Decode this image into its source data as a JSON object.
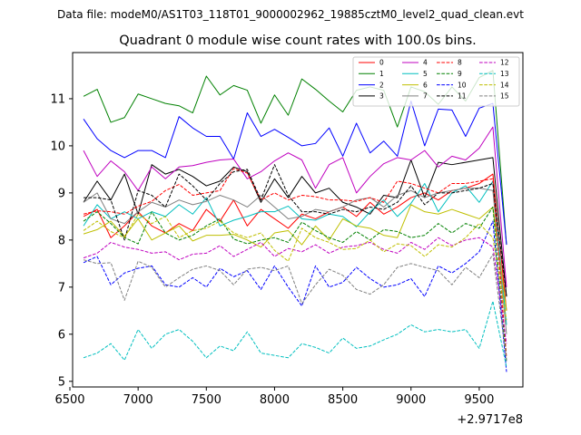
{
  "suptitle": "Data file: modeM0/AS1T03_118T01_9000002962_19885cztM0_level2_quad_clean.evt",
  "chart_data": {
    "type": "line",
    "title": "Quadrant 0 module wise count rates with 100.0s bins.",
    "xlabel": "",
    "ylabel": "",
    "x_offset_label": "+2.9717e8",
    "xlim": [
      6520,
      9820
    ],
    "ylim": [
      4.88,
      11.98
    ],
    "x_ticks": [
      6500,
      7000,
      7500,
      8000,
      8500,
      9000,
      9500
    ],
    "x_tick_labels": [
      "6500",
      "7000",
      "7500",
      "8000",
      "8500",
      "9000",
      "9500"
    ],
    "y_ticks": [
      5,
      6,
      7,
      8,
      9,
      10,
      11
    ],
    "y_tick_labels": [
      "5",
      "6",
      "7",
      "8",
      "9",
      "10",
      "11"
    ],
    "grid": false,
    "legend_position": "top-right",
    "legend_columns": 4,
    "x": [
      6600,
      6700,
      6800,
      6900,
      7000,
      7100,
      7200,
      7300,
      7400,
      7500,
      7600,
      7700,
      7800,
      7900,
      8000,
      8100,
      8200,
      8300,
      8400,
      8500,
      8600,
      8700,
      8800,
      8900,
      9000,
      9100,
      9200,
      9300,
      9400,
      9500,
      9600,
      9700
    ],
    "series": [
      {
        "name": "0",
        "color": "#ff0000",
        "dash": "solid",
        "values": [
          8.5,
          8.65,
          8.05,
          8.3,
          8.6,
          8.3,
          8.15,
          8.35,
          8.2,
          8.65,
          8.4,
          8.85,
          8.3,
          8.65,
          8.45,
          8.25,
          8.55,
          8.45,
          8.6,
          8.7,
          8.5,
          8.8,
          8.55,
          8.7,
          8.9,
          9.0,
          8.85,
          9.05,
          9.1,
          9.2,
          9.4,
          6.5
        ]
      },
      {
        "name": "1",
        "color": "#008000",
        "dash": "solid",
        "values": [
          11.05,
          11.2,
          10.5,
          10.6,
          11.1,
          11.0,
          10.9,
          10.85,
          10.7,
          11.48,
          11.08,
          11.28,
          11.18,
          10.48,
          11.08,
          10.65,
          11.42,
          11.2,
          10.95,
          10.72,
          11.18,
          11.25,
          11.18,
          10.4,
          11.25,
          11.15,
          10.88,
          11.25,
          10.95,
          11.45,
          11.6,
          7.9
        ]
      },
      {
        "name": "2",
        "color": "#0000ff",
        "dash": "solid",
        "values": [
          10.57,
          10.15,
          9.9,
          9.75,
          9.9,
          9.9,
          9.75,
          10.62,
          10.38,
          10.2,
          10.2,
          9.72,
          10.7,
          10.2,
          10.35,
          10.18,
          10.0,
          10.05,
          10.38,
          9.78,
          10.48,
          9.85,
          10.1,
          9.78,
          10.95,
          10.0,
          10.78,
          10.76,
          10.2,
          10.8,
          10.9,
          7.9
        ]
      },
      {
        "name": "3",
        "color": "#000000",
        "dash": "solid",
        "values": [
          8.8,
          9.25,
          8.85,
          9.4,
          8.55,
          9.6,
          9.4,
          9.5,
          9.35,
          9.15,
          9.25,
          9.55,
          9.45,
          8.8,
          9.3,
          8.9,
          9.35,
          9.0,
          9.1,
          8.8,
          8.7,
          8.55,
          8.95,
          8.9,
          9.7,
          8.9,
          9.65,
          9.6,
          9.65,
          9.7,
          9.75,
          6.8
        ]
      },
      {
        "name": "4",
        "color": "#bf00bf",
        "dash": "solid",
        "values": [
          9.9,
          9.35,
          9.68,
          9.45,
          9.05,
          9.55,
          9.3,
          9.55,
          9.58,
          9.65,
          9.7,
          9.72,
          9.3,
          9.45,
          9.68,
          9.85,
          9.7,
          9.1,
          9.6,
          9.75,
          9.0,
          9.35,
          9.62,
          9.75,
          9.7,
          9.9,
          9.55,
          9.78,
          9.7,
          9.95,
          10.4,
          7.0
        ]
      },
      {
        "name": "5",
        "color": "#00bfbf",
        "dash": "solid",
        "values": [
          8.3,
          8.75,
          8.45,
          8.6,
          8.45,
          8.6,
          8.5,
          8.75,
          8.55,
          8.9,
          8.3,
          8.42,
          8.5,
          8.6,
          8.6,
          8.72,
          8.45,
          8.42,
          8.55,
          8.5,
          8.28,
          8.6,
          8.85,
          8.5,
          8.78,
          9.2,
          8.6,
          9.0,
          9.15,
          8.8,
          9.25,
          6.2
        ]
      },
      {
        "name": "6",
        "color": "#bfbf00",
        "dash": "solid",
        "values": [
          8.13,
          8.22,
          8.4,
          8.08,
          8.45,
          8.0,
          8.15,
          8.3,
          7.98,
          8.1,
          8.1,
          8.12,
          8.0,
          7.85,
          8.15,
          8.2,
          7.9,
          8.3,
          8.0,
          8.45,
          8.3,
          8.25,
          8.1,
          8.05,
          8.75,
          8.6,
          8.55,
          8.65,
          8.55,
          8.45,
          8.7,
          6.5
        ]
      },
      {
        "name": "7",
        "color": "#808080",
        "dash": "solid",
        "values": [
          8.8,
          9.0,
          8.45,
          8.35,
          8.6,
          8.8,
          8.7,
          8.85,
          8.75,
          8.82,
          8.95,
          8.85,
          8.7,
          8.95,
          8.7,
          8.45,
          8.5,
          8.65,
          8.6,
          8.7,
          8.85,
          8.9,
          8.7,
          8.95,
          9.05,
          8.9,
          9.0,
          9.05,
          9.1,
          9.1,
          9.05,
          6.0
        ]
      },
      {
        "name": "8",
        "color": "#ff0000",
        "dash": "dashed",
        "values": [
          8.55,
          8.62,
          8.6,
          8.55,
          8.72,
          8.82,
          9.05,
          9.18,
          8.95,
          9.0,
          9.05,
          9.52,
          9.42,
          8.85,
          9.0,
          8.85,
          8.95,
          8.92,
          8.85,
          8.85,
          8.82,
          8.9,
          8.8,
          9.25,
          9.2,
          9.1,
          9.0,
          9.2,
          9.2,
          9.25,
          9.3,
          5.5
        ]
      },
      {
        "name": "9",
        "color": "#008000",
        "dash": "dashed",
        "values": [
          8.4,
          8.6,
          8.35,
          8.05,
          7.92,
          8.6,
          8.15,
          8.0,
          8.1,
          8.3,
          8.45,
          8.02,
          7.92,
          8.0,
          8.05,
          7.95,
          8.38,
          8.2,
          8.05,
          7.95,
          8.18,
          8.0,
          8.22,
          8.18,
          8.05,
          8.1,
          8.35,
          8.15,
          8.35,
          8.25,
          8.7,
          5.4
        ]
      },
      {
        "name": "10",
        "color": "#0000ff",
        "dash": "dashed",
        "values": [
          7.52,
          7.65,
          7.05,
          7.3,
          7.4,
          7.45,
          7.05,
          7.0,
          7.2,
          7.0,
          7.4,
          7.22,
          7.35,
          6.95,
          7.45,
          7.0,
          6.6,
          7.45,
          7.0,
          7.1,
          7.42,
          7.18,
          7.0,
          7.05,
          7.18,
          6.8,
          7.45,
          7.3,
          7.5,
          7.75,
          8.4,
          5.2
        ]
      },
      {
        "name": "11",
        "color": "#000000",
        "dash": "dashed",
        "values": [
          8.9,
          8.9,
          8.85,
          8.0,
          9.05,
          8.95,
          8.7,
          9.4,
          9.15,
          8.85,
          9.2,
          9.45,
          9.5,
          8.85,
          9.6,
          8.95,
          8.6,
          8.6,
          8.55,
          8.65,
          8.6,
          8.7,
          8.65,
          8.8,
          9.15,
          8.75,
          9.0,
          9.0,
          9.05,
          9.1,
          9.2,
          6.8
        ]
      },
      {
        "name": "12",
        "color": "#bf00bf",
        "dash": "dashed",
        "values": [
          7.62,
          7.72,
          7.95,
          7.85,
          7.8,
          7.72,
          7.75,
          7.58,
          7.7,
          7.72,
          7.88,
          7.65,
          7.8,
          7.95,
          7.65,
          7.82,
          7.75,
          7.9,
          7.72,
          7.85,
          7.88,
          7.95,
          7.8,
          7.72,
          7.95,
          7.8,
          8.05,
          7.88,
          8.0,
          8.05,
          7.85,
          5.8
        ]
      },
      {
        "name": "13",
        "color": "#00bfbf",
        "dash": "dashed",
        "values": [
          5.5,
          5.6,
          5.8,
          5.45,
          6.1,
          5.7,
          6.0,
          6.1,
          5.85,
          5.5,
          5.75,
          5.65,
          6.05,
          5.6,
          5.55,
          5.5,
          5.8,
          5.72,
          5.6,
          5.92,
          5.7,
          5.75,
          5.88,
          6.0,
          6.2,
          6.05,
          6.1,
          6.05,
          6.1,
          5.7,
          6.7,
          5.3
        ]
      },
      {
        "name": "14",
        "color": "#bfbf00",
        "dash": "dashed",
        "values": [
          8.2,
          8.4,
          8.18,
          8.05,
          8.55,
          8.35,
          8.5,
          8.05,
          8.2,
          8.25,
          8.4,
          8.15,
          8.05,
          8.15,
          7.78,
          7.55,
          8.25,
          8.05,
          7.95,
          7.8,
          7.82,
          8.0,
          7.75,
          7.92,
          7.88,
          7.65,
          7.9,
          7.85,
          8.05,
          8.35,
          8.05,
          6.3
        ]
      },
      {
        "name": "15",
        "color": "#808080",
        "dash": "dashed",
        "values": [
          7.58,
          7.5,
          7.52,
          6.72,
          7.55,
          7.42,
          7.0,
          7.2,
          7.38,
          7.45,
          7.35,
          7.05,
          7.38,
          7.42,
          7.35,
          7.45,
          6.65,
          7.05,
          7.38,
          7.25,
          6.95,
          6.85,
          7.05,
          7.42,
          7.5,
          7.42,
          7.35,
          7.05,
          7.42,
          7.2,
          7.7,
          5.45
        ]
      }
    ]
  }
}
